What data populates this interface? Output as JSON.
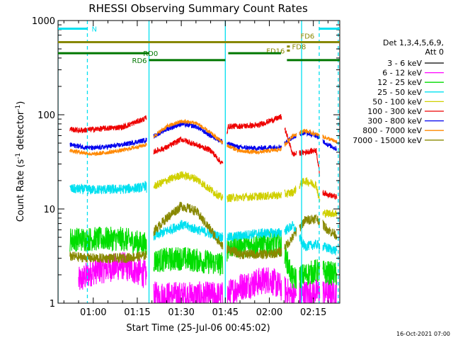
{
  "chart_data": {
    "type": "line",
    "title": "RHESSI Observing Summary Count Rates",
    "xlabel": "Start Time (25-Jul-06 00:45:02)",
    "ylabel_main": "Count Rate (s",
    "ylabel_sup1": "-1",
    "ylabel_mid": " detector",
    "ylabel_sup2": "-1",
    "ylabel_end": ")",
    "y_scale": "log",
    "ylim": [
      1,
      1000
    ],
    "xlim_minutes": [
      -12,
      84
    ],
    "x_ticks": [
      {
        "t": 0,
        "label": "01:00"
      },
      {
        "t": 15,
        "label": "01:15"
      },
      {
        "t": 30,
        "label": "01:30"
      },
      {
        "t": 45,
        "label": "01:45"
      },
      {
        "t": 60,
        "label": "02:00"
      },
      {
        "t": 75,
        "label": "02:15"
      }
    ],
    "y_ticks": [
      {
        "v": 1,
        "label": "1"
      },
      {
        "v": 10,
        "label": "10"
      },
      {
        "v": 100,
        "label": "100"
      },
      {
        "v": 1000,
        "label": "1000"
      }
    ],
    "legend_header": [
      "Det 1,3,4,5,6,9,",
      "Att 0"
    ],
    "legend_position": "right",
    "series": [
      {
        "name": "3 - 6 keV",
        "color": "#000000",
        "anchors": [],
        "noise": 0.05
      },
      {
        "name": "6 - 12 keV",
        "color": "#ff00ff",
        "anchors": [
          [
            -5,
            1.7
          ],
          [
            0,
            2.2
          ],
          [
            10,
            2.5
          ],
          [
            18,
            2.0
          ],
          [
            20,
            1.2
          ],
          [
            45,
            1.2
          ],
          [
            50,
            1.5
          ],
          [
            60,
            1.8
          ],
          [
            68,
            1.2
          ],
          [
            76,
            1.3
          ],
          [
            84,
            1.3
          ]
        ],
        "noise": 0.35
      },
      {
        "name": "12 - 25 keV",
        "color": "#00dd00",
        "anchors": [
          [
            -12,
            4.7
          ],
          [
            0,
            4.8
          ],
          [
            10,
            4.8
          ],
          [
            18,
            4.2
          ],
          [
            20,
            2.8
          ],
          [
            30,
            3.0
          ],
          [
            44,
            2.6
          ],
          [
            46,
            4.0
          ],
          [
            56,
            4.2
          ],
          [
            64,
            4.4
          ],
          [
            68,
            1.8
          ],
          [
            76,
            2.2
          ],
          [
            84,
            2.0
          ]
        ],
        "noise": 0.3
      },
      {
        "name": "25 - 50 keV",
        "color": "#00e0f0",
        "anchors": [
          [
            -12,
            16.5
          ],
          [
            0,
            16.0
          ],
          [
            10,
            16.2
          ],
          [
            17,
            17.0
          ],
          [
            18,
            18.0
          ],
          [
            20,
            5.0
          ],
          [
            30,
            6.8
          ],
          [
            44,
            5.0
          ],
          [
            46,
            5.0
          ],
          [
            56,
            5.5
          ],
          [
            64,
            5.6
          ],
          [
            68,
            6.6
          ],
          [
            72,
            4.0
          ],
          [
            76,
            4.2
          ],
          [
            84,
            3.5
          ]
        ],
        "noise": 0.12
      },
      {
        "name": "50 - 100 keV",
        "color": "#d0d000",
        "anchors": [
          [
            20,
            17
          ],
          [
            25,
            20
          ],
          [
            30,
            23
          ],
          [
            35,
            21
          ],
          [
            40,
            16
          ],
          [
            44,
            13
          ],
          [
            64,
            14
          ],
          [
            68,
            15
          ],
          [
            72,
            20
          ],
          [
            76,
            18
          ],
          [
            78,
            9
          ],
          [
            84,
            9
          ]
        ],
        "noise": 0.1
      },
      {
        "name": "100 - 300 keV",
        "color": "#ee0000",
        "anchors": [
          [
            -12,
            75
          ],
          [
            -5,
            68
          ],
          [
            0,
            70
          ],
          [
            10,
            74
          ],
          [
            18,
            92
          ],
          [
            20,
            40
          ],
          [
            25,
            45
          ],
          [
            30,
            55
          ],
          [
            40,
            42
          ],
          [
            44,
            30
          ],
          [
            46,
            75
          ],
          [
            56,
            77
          ],
          [
            64,
            95
          ],
          [
            68,
            38
          ],
          [
            72,
            40
          ],
          [
            76,
            42
          ],
          [
            78,
            15
          ],
          [
            84,
            13
          ]
        ],
        "noise": 0.07
      },
      {
        "name": "300 - 800 keV",
        "color": "#0000ee",
        "anchors": [
          [
            -12,
            50
          ],
          [
            0,
            44
          ],
          [
            10,
            48
          ],
          [
            18,
            54
          ],
          [
            20,
            58
          ],
          [
            25,
            70
          ],
          [
            30,
            80
          ],
          [
            35,
            75
          ],
          [
            40,
            60
          ],
          [
            45,
            50
          ],
          [
            50,
            45
          ],
          [
            56,
            44
          ],
          [
            64,
            46
          ],
          [
            68,
            58
          ],
          [
            72,
            65
          ],
          [
            76,
            60
          ],
          [
            80,
            48
          ],
          [
            84,
            42
          ]
        ],
        "noise": 0.06
      },
      {
        "name": "800 - 7000 keV",
        "color": "#ff8800",
        "anchors": [
          [
            -12,
            44
          ],
          [
            0,
            38
          ],
          [
            10,
            42
          ],
          [
            18,
            48
          ],
          [
            20,
            57
          ],
          [
            25,
            75
          ],
          [
            30,
            85
          ],
          [
            35,
            82
          ],
          [
            40,
            64
          ],
          [
            45,
            48
          ],
          [
            50,
            41
          ],
          [
            56,
            40
          ],
          [
            64,
            43
          ],
          [
            68,
            60
          ],
          [
            72,
            68
          ],
          [
            76,
            62
          ],
          [
            80,
            56
          ],
          [
            84,
            50
          ]
        ],
        "noise": 0.05
      },
      {
        "name": "7000 - 15000 keV",
        "color": "#888800",
        "anchors": [
          [
            -12,
            3.2
          ],
          [
            0,
            3.0
          ],
          [
            10,
            3.0
          ],
          [
            18,
            3.2
          ],
          [
            20,
            5.5
          ],
          [
            25,
            8.0
          ],
          [
            30,
            10.8
          ],
          [
            35,
            9.5
          ],
          [
            40,
            6.0
          ],
          [
            44,
            4.0
          ],
          [
            50,
            3.3
          ],
          [
            60,
            3.3
          ],
          [
            64,
            3.5
          ],
          [
            68,
            5.0
          ],
          [
            72,
            7.5
          ],
          [
            76,
            8.0
          ],
          [
            80,
            6.0
          ],
          [
            84,
            5.0
          ]
        ],
        "noise": 0.12
      }
    ],
    "gaps_minutes": [
      [
        -12,
        -8
      ],
      [
        18.2,
        20.6
      ],
      [
        44.2,
        45.6
      ],
      [
        64.2,
        65.2
      ],
      [
        69.2,
        70.2
      ],
      [
        77.2,
        78.2
      ],
      [
        83.0,
        84.0
      ]
    ],
    "flag_bars": [
      {
        "label": "N",
        "color": "#00e0f0",
        "t0": -12,
        "t1": -2,
        "value": 820
      },
      {
        "label": "",
        "color": "#00e0f0",
        "t0": 77,
        "t1": 84,
        "value": 820
      },
      {
        "label": "FD6",
        "color": "#888800",
        "t0": -12,
        "t1": 84,
        "value": 590
      },
      {
        "label": "FD8",
        "color": "#888800",
        "t0": 66,
        "t1": 67,
        "value": 530
      },
      {
        "label": "FD16",
        "color": "#888800",
        "t0": 66,
        "t1": 67,
        "value": 480
      },
      {
        "label": "RD0",
        "color": "#007700",
        "t0": -12,
        "t1": 19,
        "value": 450
      },
      {
        "label": "",
        "color": "#007700",
        "t0": 46,
        "t1": 64,
        "value": 450
      },
      {
        "label": "RD6",
        "color": "#007700",
        "t0": 19,
        "t1": 45,
        "value": 380
      },
      {
        "label": "",
        "color": "#007700",
        "t0": 66,
        "t1": 84,
        "value": 380
      }
    ],
    "vertical_markers": [
      {
        "t": -12,
        "color": "#00e0f0",
        "style": "solid"
      },
      {
        "t": -2,
        "color": "#00e0f0",
        "style": "dashed"
      },
      {
        "t": 19,
        "color": "#00e0f0",
        "style": "solid"
      },
      {
        "t": 45,
        "color": "#00e0f0",
        "style": "solid"
      },
      {
        "t": 71,
        "color": "#00e0f0",
        "style": "solid"
      },
      {
        "t": 77,
        "color": "#00e0f0",
        "style": "dashed"
      },
      {
        "t": 83.5,
        "color": "#00e0f0",
        "style": "dashed"
      }
    ],
    "timestamp": "16-Oct-2021 07:00"
  }
}
